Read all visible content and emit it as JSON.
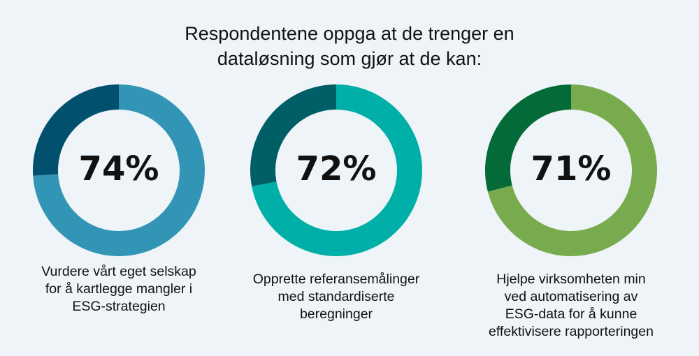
{
  "title": {
    "line1": "Respondentene oppga at de trenger en",
    "line2": "dataløsning som gjør at de kan:"
  },
  "chart_data": {
    "type": "pie",
    "variant": "donut",
    "charts": [
      {
        "value": 74,
        "label": "74%",
        "caption_lines": [
          "Vurdere vårt eget selskap",
          "for å kartlegge mangler i",
          "ESG-strategien"
        ],
        "colors": {
          "value": "#3395b5",
          "remainder": "#00506e"
        }
      },
      {
        "value": 72,
        "label": "72%",
        "caption_lines": [
          "Opprette referansemålinger",
          "med standardiserte",
          "beregninger"
        ],
        "colors": {
          "value": "#00b0a8",
          "remainder": "#005e66"
        }
      },
      {
        "value": 71,
        "label": "71%",
        "caption_lines": [
          "Hjelpe virksomheten min",
          "ved automatisering av",
          "ESG-data for å kunne",
          "effektivisere rapporteringen"
        ],
        "colors": {
          "value": "#78ab4e",
          "remainder": "#046b38"
        }
      }
    ]
  }
}
